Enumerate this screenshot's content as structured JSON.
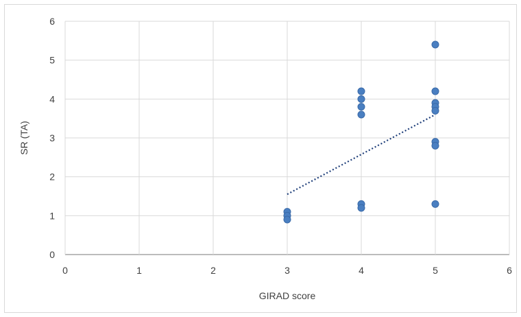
{
  "chart_data": {
    "type": "scatter",
    "title": "",
    "xlabel": "GIRAD score",
    "ylabel": "SR (TA)",
    "xlim": [
      0,
      6
    ],
    "ylim": [
      0,
      6
    ],
    "x_ticks": [
      "0",
      "1",
      "2",
      "3",
      "4",
      "5",
      "6"
    ],
    "y_ticks": [
      "0",
      "1",
      "2",
      "3",
      "4",
      "5",
      "6"
    ],
    "grid": true,
    "legend": "none",
    "point_color": "#4a7fc1",
    "trendline": {
      "type": "linear",
      "style": "dotted",
      "color": "#1f3f7a",
      "x_start": 3,
      "x_end": 5,
      "y_start": 1.55,
      "y_end": 3.6
    },
    "points": [
      {
        "x": 3,
        "y": 1.1
      },
      {
        "x": 3,
        "y": 1.0
      },
      {
        "x": 3,
        "y": 0.9
      },
      {
        "x": 4,
        "y": 4.2
      },
      {
        "x": 4,
        "y": 4.0
      },
      {
        "x": 4,
        "y": 3.8
      },
      {
        "x": 4,
        "y": 3.6
      },
      {
        "x": 4,
        "y": 1.3
      },
      {
        "x": 4,
        "y": 1.2
      },
      {
        "x": 5,
        "y": 5.4
      },
      {
        "x": 5,
        "y": 4.2
      },
      {
        "x": 5,
        "y": 3.9
      },
      {
        "x": 5,
        "y": 3.8
      },
      {
        "x": 5,
        "y": 3.7
      },
      {
        "x": 5,
        "y": 2.9
      },
      {
        "x": 5,
        "y": 2.8
      },
      {
        "x": 5,
        "y": 1.3
      }
    ]
  }
}
